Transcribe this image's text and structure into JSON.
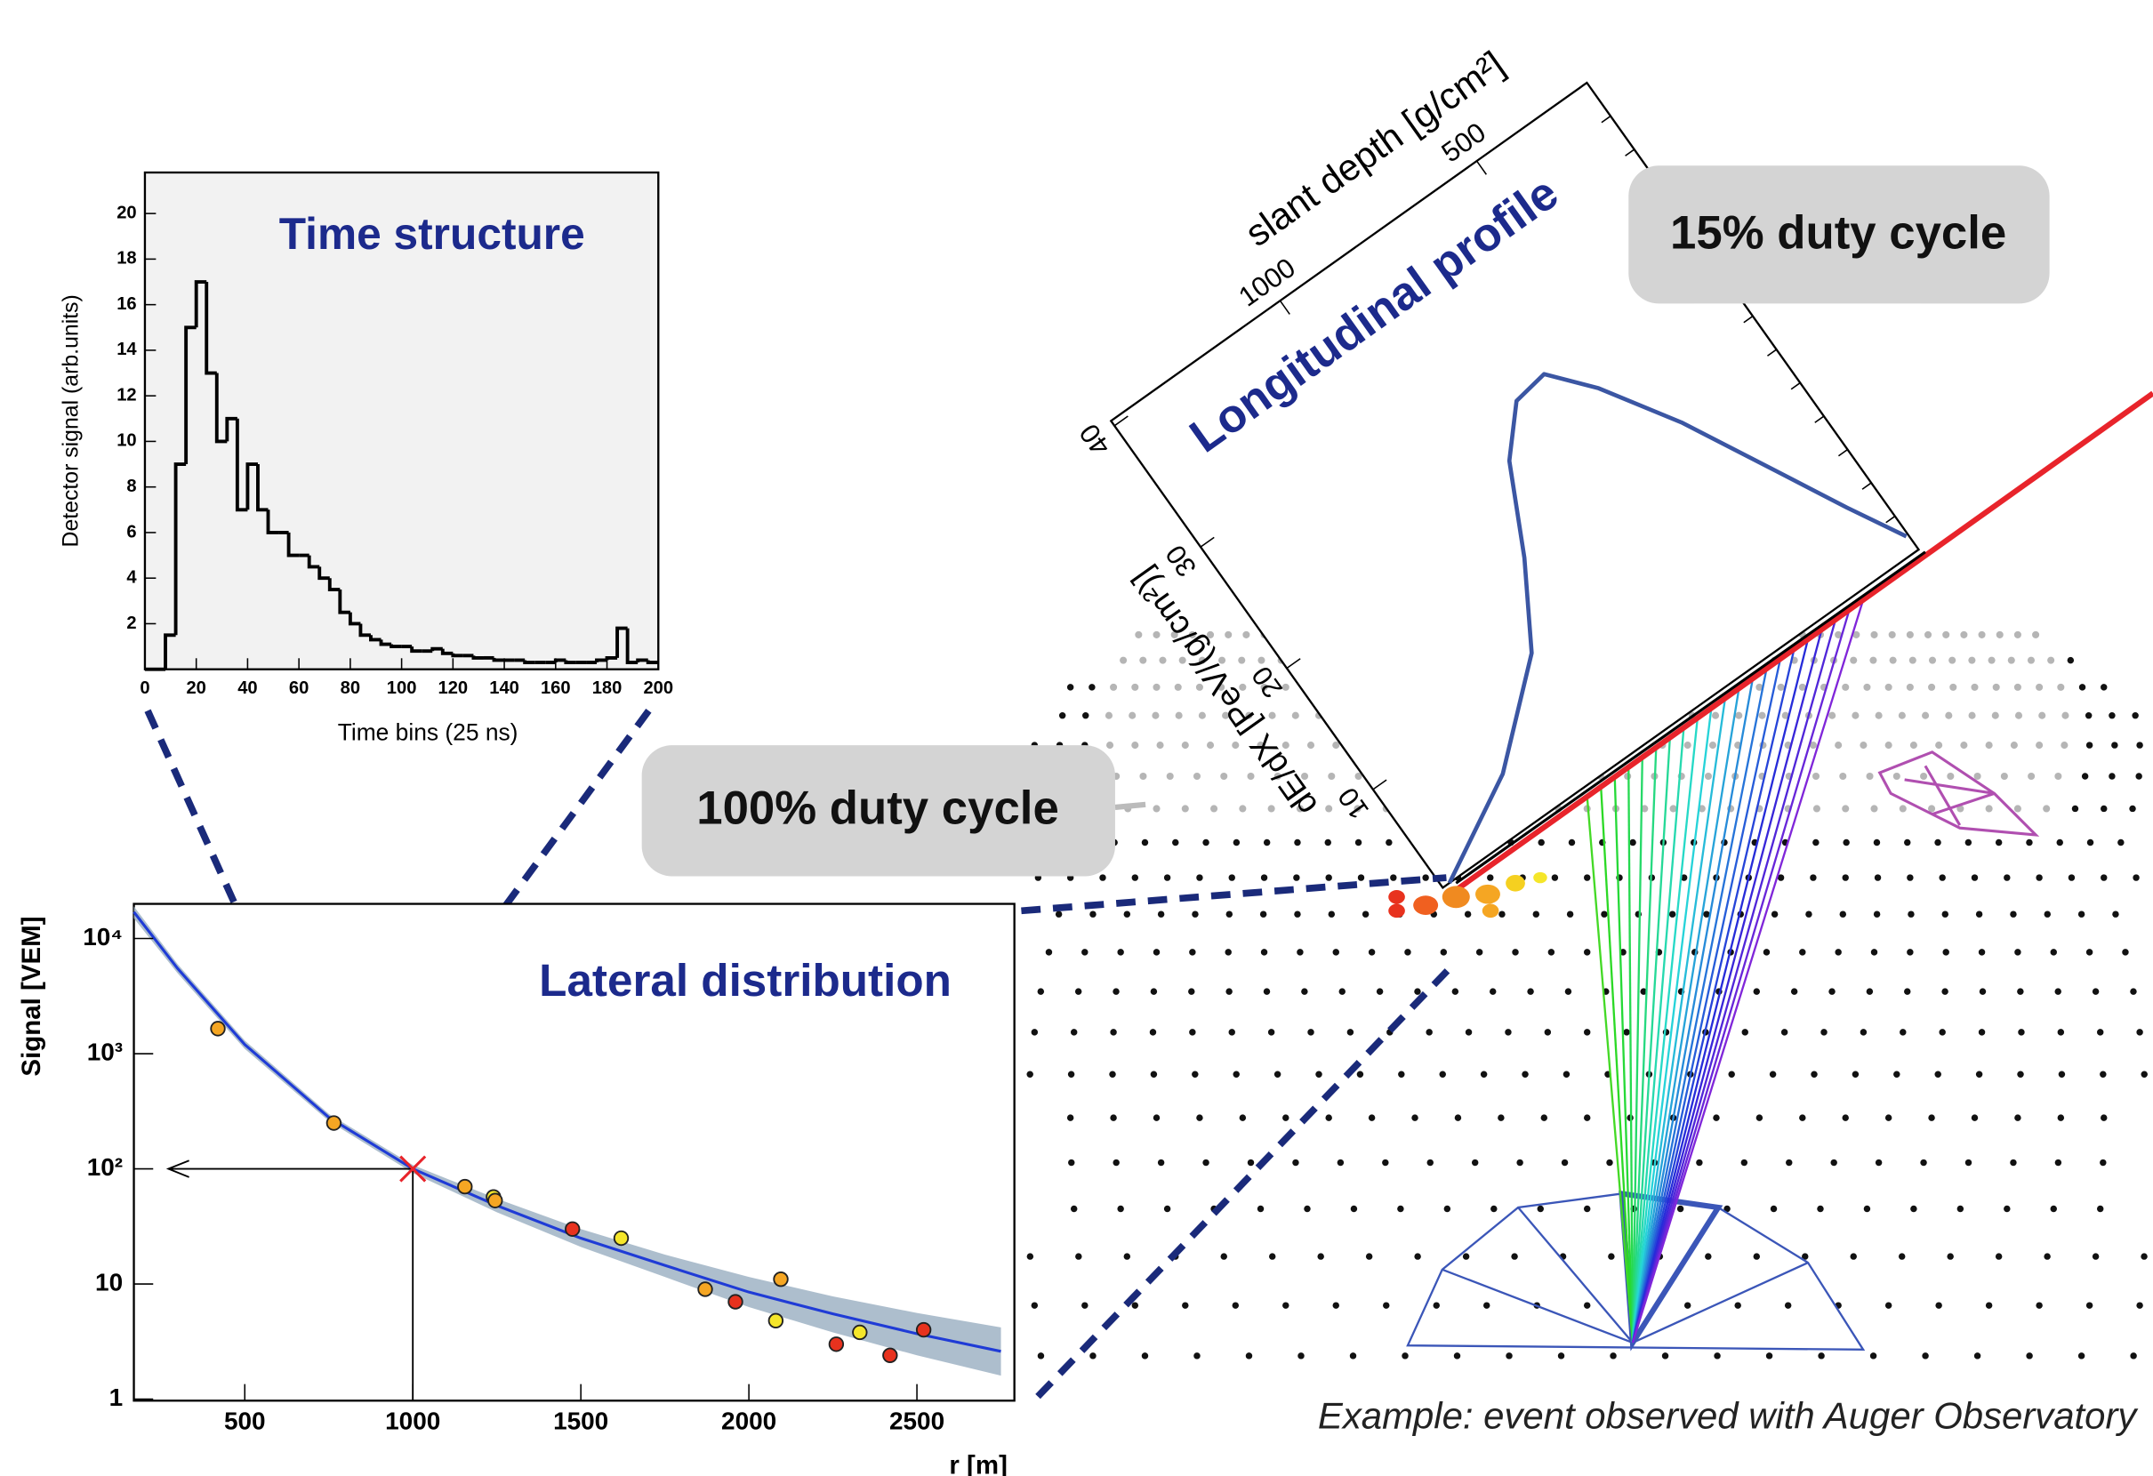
{
  "chart_data": [
    {
      "type": "histogram",
      "title": "Time structure",
      "xlabel": "Time bins (25 ns)",
      "ylabel": "Detector signal (arb.units)",
      "bins": [
        0,
        4,
        8,
        12,
        16,
        20,
        24,
        28,
        32,
        36,
        40,
        44,
        48,
        52,
        56,
        60,
        64,
        68,
        72,
        76,
        80,
        84,
        88,
        92,
        96,
        100,
        104,
        108,
        112,
        116,
        120,
        124,
        128,
        132,
        136,
        140,
        144,
        148,
        152,
        156,
        160,
        164,
        168,
        172,
        176,
        180,
        184,
        188,
        192,
        196,
        200
      ],
      "values": [
        0,
        0,
        1.5,
        9,
        15,
        17,
        13,
        10,
        11,
        7,
        9,
        7,
        6,
        6,
        5,
        5,
        4.5,
        4,
        3.5,
        2.5,
        2,
        1.5,
        1.3,
        1.1,
        1,
        1,
        0.8,
        0.8,
        0.9,
        0.7,
        0.6,
        0.6,
        0.5,
        0.5,
        0.4,
        0.4,
        0.4,
        0.3,
        0.3,
        0.3,
        0.4,
        0.3,
        0.3,
        0.3,
        0.4,
        0.5,
        1.8,
        0.3,
        0.4,
        0.3
      ],
      "color": "#000000",
      "background": "#f2f2f2",
      "xlim": [
        0,
        200
      ],
      "ylim": [
        0,
        21.8
      ],
      "xticks": [
        0,
        20,
        40,
        60,
        80,
        100,
        120,
        140,
        160,
        180,
        200
      ],
      "yticks": [
        2,
        4,
        6,
        8,
        10,
        12,
        14,
        16,
        18,
        20
      ]
    },
    {
      "type": "scatter",
      "title": "Lateral distribution",
      "xlabel": "r [m]",
      "ylabel": "Signal [VEM]",
      "log_y": true,
      "x": [
        420,
        765,
        1155,
        1240,
        1245,
        1475,
        1620,
        1870,
        1960,
        2080,
        2095,
        2260,
        2330,
        2420,
        2520
      ],
      "values": [
        1650,
        250,
        70,
        57,
        53,
        30,
        25,
        9,
        7,
        4.8,
        11,
        3,
        3.8,
        2.4,
        4
      ],
      "colors": [
        "#f5a623",
        "#f5a623",
        "#f5a623",
        "#f5e62a",
        "#f5a623",
        "#e8321e",
        "#f5e62a",
        "#f5a623",
        "#e8321e",
        "#f5e62a",
        "#f5a623",
        "#e8321e",
        "#f5e62a",
        "#e8321e",
        "#e8321e"
      ],
      "fit": {
        "color": "#1f3bd6",
        "band_color": "#9fb3c4",
        "x": [
          170,
          300,
          500,
          750,
          1000,
          1250,
          1500,
          1750,
          2000,
          2250,
          2500,
          2750
        ],
        "values": [
          17000,
          5500,
          1200,
          280,
          100,
          48,
          25,
          14.5,
          8.5,
          5.5,
          3.7,
          2.6
        ],
        "band_low": [
          15000,
          5000,
          1100,
          260,
          92,
          42,
          21,
          11.5,
          6.3,
          3.8,
          2.4,
          1.6
        ],
        "band_high": [
          19000,
          6000,
          1300,
          300,
          108,
          55,
          30,
          18,
          11.5,
          7.8,
          5.6,
          4.2
        ]
      },
      "reference": {
        "x": 1000,
        "y": 100
      },
      "xlim": [
        170,
        2790
      ],
      "ylim": [
        0.97,
        20000
      ],
      "xticks": [
        500,
        1000,
        1500,
        2000,
        2500
      ],
      "yticks": [
        1,
        10,
        {
          "value": 100,
          "label": "10²"
        },
        {
          "value": 1000,
          "label": "10³"
        },
        {
          "value": 10000,
          "label": "10⁴"
        }
      ]
    },
    {
      "type": "line",
      "title": "Longitudinal profile",
      "xlabel": "slant depth [g/cm²]",
      "ylabel": "dE/dX [PeV/(g/cm²)]",
      "x": [
        1413,
        1192,
        998,
        896,
        805,
        721,
        642,
        567,
        468,
        364,
        291,
        225
      ],
      "values": [
        1.9,
        5.8,
        11.3,
        16.8,
        22.7,
        25.7,
        26.1,
        23.2,
        18.1,
        11.6,
        7.0,
        3.1
      ],
      "color": "#3b56a3",
      "xlim": [
        1430,
        220
      ],
      "ylim": [
        1.9,
        40.4
      ],
      "xticks": [
        1000,
        500
      ],
      "yticks": [
        10,
        20,
        30,
        40
      ]
    }
  ],
  "callouts": [
    "15% duty cycle",
    "100% duty cycle"
  ],
  "caption": "Example: event observed with Auger Observatory"
}
